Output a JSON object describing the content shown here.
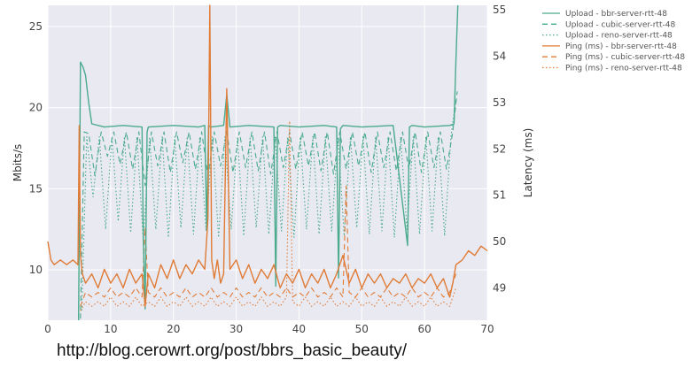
{
  "chart_data": {
    "type": "line",
    "title": "",
    "xlabel": "",
    "ylabel_left": "Mbits/s",
    "ylabel_right": "Latency (ms)",
    "xlim": [
      0,
      70
    ],
    "ylim_left": [
      6.9,
      26.3
    ],
    "ylim_right": [
      48.3,
      55.1
    ],
    "x_ticks": [
      "0",
      "10",
      "20",
      "30",
      "40",
      "50",
      "60",
      "70"
    ],
    "y_left_ticks": [
      "10",
      "15",
      "20",
      "25"
    ],
    "y_right_ticks": [
      "49",
      "50",
      "51",
      "52",
      "53",
      "54",
      "55"
    ],
    "grid": true,
    "legend_position": "right, outside plot",
    "colors": {
      "upload": "#4aaa8c",
      "ping": "#e07b36",
      "plot_bg": "#e9e9f2",
      "grid": "#ffffff"
    },
    "series": [
      {
        "name": "Upload - bbr-server-rtt-48",
        "axis": "left",
        "style": "solid",
        "color": "#4aaa8c",
        "x": [
          0,
          4.9,
          5.2,
          5.6,
          6.0,
          6.5,
          7,
          9,
          12,
          15,
          15.2,
          15.5,
          15.8,
          16,
          20,
          24,
          25,
          25.3,
          25.6,
          26,
          28,
          28.5,
          29,
          32,
          36,
          36.3,
          36.6,
          37,
          40,
          44,
          46,
          46.3,
          46.6,
          47,
          50,
          55,
          57.3,
          57.6,
          58,
          60,
          64,
          64.7,
          65.0,
          65.3
        ],
        "values": [
          null,
          6.9,
          22.8,
          22.5,
          22.0,
          20.3,
          19.0,
          18.8,
          18.9,
          18.8,
          12.0,
          7.6,
          18.5,
          18.8,
          18.9,
          18.8,
          18.9,
          12.5,
          18.9,
          18.8,
          18.9,
          20.8,
          18.8,
          18.9,
          18.8,
          9.0,
          18.8,
          18.9,
          18.8,
          18.9,
          18.8,
          9.5,
          18.7,
          18.9,
          18.8,
          18.9,
          11.5,
          18.8,
          18.9,
          18.8,
          18.9,
          19.0,
          23.0,
          26.3
        ]
      },
      {
        "name": "Upload - cubic-server-rtt-48",
        "axis": "left",
        "style": "dashed",
        "color": "#4aaa8c",
        "x": [
          5.2,
          5.8,
          6.5,
          7.5,
          8.5,
          9.5,
          10.5,
          11.5,
          12.5,
          13.5,
          14.5,
          15.5,
          16.5,
          17.5,
          18.5,
          19.5,
          20.5,
          21.5,
          22.5,
          23.5,
          24.5,
          25.5,
          26.5,
          27.5,
          28.5,
          29.5,
          30.5,
          31.5,
          32.5,
          33.5,
          34.5,
          35.5,
          36.5,
          37.5,
          38.5,
          39.5,
          40.5,
          41.5,
          42.5,
          43.5,
          44.5,
          45.5,
          46.5,
          47.5,
          48.5,
          49.5,
          50.5,
          51.5,
          52.5,
          53.5,
          54.5,
          55.5,
          56.5,
          57.5,
          58.5,
          59.5,
          60.5,
          61.5,
          62.5,
          63.5,
          64.5,
          65.2
        ],
        "values": [
          7.0,
          18.5,
          18.4,
          15.8,
          18.5,
          17.0,
          18.5,
          16.5,
          18.5,
          16.2,
          18.5,
          15.2,
          18.5,
          16.4,
          18.5,
          16.0,
          18.5,
          16.6,
          18.5,
          16.2,
          18.5,
          15.8,
          18.5,
          16.4,
          18.5,
          16.0,
          18.5,
          16.3,
          18.5,
          16.1,
          18.5,
          15.9,
          18.5,
          16.3,
          18.5,
          16.2,
          18.5,
          16.4,
          18.5,
          16.1,
          18.5,
          15.9,
          18.5,
          16.2,
          18.5,
          16.4,
          18.5,
          16.0,
          18.5,
          16.3,
          18.5,
          16.1,
          18.5,
          16.2,
          18.5,
          16.0,
          18.5,
          16.3,
          18.5,
          16.2,
          18.5,
          21.0
        ]
      },
      {
        "name": "Upload - reno-server-rtt-48",
        "axis": "left",
        "style": "dotted",
        "color": "#4aaa8c",
        "x": [
          5.4,
          6.2,
          7.2,
          8.2,
          9.2,
          10.2,
          11.2,
          12.2,
          13.2,
          14.2,
          15.2,
          16.2,
          17.2,
          18.2,
          19.2,
          20.2,
          21.2,
          22.2,
          23.2,
          24.2,
          25.2,
          26.2,
          27.2,
          28.2,
          29.2,
          30.2,
          31.2,
          32.2,
          33.2,
          34.2,
          35.2,
          36.2,
          37.2,
          38.2,
          39.2,
          40.2,
          41.2,
          42.2,
          43.2,
          44.2,
          45.2,
          46.2,
          47.2,
          48.2,
          49.2,
          50.2,
          51.2,
          52.2,
          53.2,
          54.2,
          55.2,
          56.2,
          57.2,
          58.2,
          59.2,
          60.2,
          61.2,
          62.2,
          63.2,
          64.2,
          65.0
        ],
        "values": [
          7.5,
          18.2,
          14.5,
          18.2,
          12.5,
          18.2,
          13.0,
          18.2,
          12.3,
          18.2,
          11.8,
          18.2,
          12.5,
          18.2,
          12.0,
          18.2,
          12.6,
          18.2,
          12.2,
          18.2,
          12.4,
          18.2,
          12.0,
          18.2,
          12.5,
          18.2,
          12.1,
          18.2,
          12.6,
          18.2,
          12.2,
          18.2,
          12.4,
          18.2,
          12.0,
          18.2,
          12.5,
          18.2,
          12.2,
          18.2,
          12.4,
          18.2,
          12.1,
          18.2,
          12.6,
          18.2,
          12.2,
          18.2,
          12.4,
          18.2,
          12.0,
          18.2,
          12.5,
          18.2,
          12.2,
          18.2,
          12.4,
          18.2,
          12.1,
          18.2,
          20.5
        ]
      },
      {
        "name": "Ping (ms) - bbr-server-rtt-48",
        "axis": "right",
        "style": "solid",
        "color": "#e07b36",
        "x": [
          0,
          0.5,
          1,
          2,
          3,
          4,
          4.8,
          5.0,
          5.2,
          5.5,
          6,
          7,
          8,
          9,
          10,
          11,
          12,
          13,
          14,
          15,
          15.5,
          16,
          17,
          18,
          19,
          20,
          21,
          22,
          23,
          24,
          25,
          25.5,
          25.8,
          26.1,
          26.5,
          27,
          27.5,
          28,
          28.5,
          29,
          30,
          31,
          32,
          33,
          34,
          35,
          36,
          37,
          38,
          39,
          40,
          41,
          42,
          43,
          44,
          45,
          46,
          47,
          48,
          49,
          50,
          51,
          52,
          53,
          54,
          55,
          56,
          57,
          58,
          59,
          60,
          61,
          62,
          63,
          64,
          64.5,
          65,
          66,
          67,
          68,
          69,
          70
        ],
        "values": [
          50.0,
          49.6,
          49.5,
          49.6,
          49.5,
          49.6,
          49.5,
          52.5,
          49.7,
          49.3,
          49.1,
          49.3,
          49.0,
          49.4,
          49.1,
          49.3,
          49.0,
          49.4,
          49.1,
          49.3,
          48.6,
          49.3,
          49.0,
          49.5,
          49.2,
          49.6,
          49.2,
          49.5,
          49.3,
          49.6,
          49.4,
          50.5,
          55.1,
          49.6,
          49.2,
          49.6,
          49.1,
          49.3,
          53.3,
          49.4,
          49.6,
          49.2,
          49.5,
          49.1,
          49.4,
          49.2,
          49.5,
          49.0,
          49.3,
          49.1,
          49.4,
          49.0,
          49.3,
          49.1,
          49.4,
          49.0,
          49.3,
          49.7,
          49.1,
          49.4,
          49.0,
          49.3,
          49.1,
          49.3,
          49.0,
          49.2,
          49.1,
          49.3,
          49.0,
          49.2,
          49.1,
          49.3,
          49.0,
          49.2,
          48.8,
          49.1,
          49.5,
          49.6,
          49.8,
          49.7,
          49.9,
          49.8
        ]
      },
      {
        "name": "Ping (ms) - cubic-server-rtt-48",
        "axis": "right",
        "style": "dashed",
        "color": "#e07b36",
        "x": [
          5.2,
          6,
          7,
          8,
          9,
          10,
          11,
          12,
          13,
          14,
          15,
          15.5,
          16,
          17,
          18,
          19,
          20,
          21,
          22,
          23,
          24,
          25,
          26,
          27,
          28,
          29,
          30,
          31,
          32,
          33,
          34,
          35,
          36,
          37,
          38,
          39,
          40,
          41,
          42,
          43,
          44,
          45,
          46,
          47,
          47.5,
          48,
          49,
          50,
          51,
          52,
          53,
          54,
          55,
          56,
          57,
          58,
          59,
          60,
          61,
          62,
          63,
          64,
          65
        ],
        "values": [
          48.6,
          48.9,
          48.8,
          48.9,
          48.8,
          49.0,
          48.8,
          48.9,
          48.8,
          49.0,
          48.8,
          50.3,
          48.9,
          48.8,
          49.0,
          48.8,
          48.9,
          48.8,
          49.0,
          48.8,
          48.9,
          48.8,
          49.0,
          48.8,
          48.9,
          48.8,
          49.0,
          48.8,
          48.9,
          48.8,
          49.0,
          48.8,
          48.9,
          48.8,
          49.0,
          48.8,
          48.9,
          48.8,
          49.0,
          48.8,
          48.9,
          48.8,
          49.0,
          48.8,
          51.2,
          48.9,
          48.8,
          49.0,
          48.8,
          48.9,
          48.8,
          49.0,
          48.8,
          48.9,
          48.8,
          49.0,
          48.8,
          48.9,
          48.8,
          49.0,
          48.8,
          48.9,
          49.3
        ]
      },
      {
        "name": "Ping (ms) - reno-server-rtt-48",
        "axis": "right",
        "style": "dotted",
        "color": "#e07b36",
        "x": [
          5.2,
          6,
          7,
          8,
          9,
          10,
          11,
          12,
          13,
          14,
          15,
          16,
          17,
          18,
          19,
          20,
          21,
          22,
          23,
          24,
          25,
          26,
          27,
          28,
          29,
          30,
          31,
          32,
          33,
          34,
          35,
          36,
          37,
          38,
          38.5,
          39,
          40,
          41,
          42,
          43,
          44,
          45,
          46,
          47,
          48,
          49,
          50,
          51,
          52,
          53,
          54,
          55,
          56,
          57,
          58,
          59,
          60,
          61,
          62,
          63,
          64,
          65
        ],
        "values": [
          48.5,
          48.7,
          48.6,
          48.7,
          48.6,
          48.8,
          48.6,
          48.7,
          48.6,
          48.8,
          48.6,
          48.7,
          48.6,
          48.8,
          48.6,
          48.7,
          48.6,
          48.8,
          48.6,
          48.7,
          48.6,
          48.8,
          48.6,
          48.7,
          48.6,
          48.8,
          48.6,
          48.7,
          48.6,
          48.8,
          48.6,
          48.7,
          48.6,
          48.8,
          52.6,
          48.7,
          48.6,
          48.8,
          48.6,
          48.7,
          48.6,
          48.8,
          48.6,
          48.7,
          48.6,
          48.8,
          48.6,
          48.7,
          48.6,
          48.8,
          48.6,
          48.7,
          48.6,
          48.8,
          48.6,
          48.7,
          48.6,
          48.8,
          48.6,
          48.7,
          48.6,
          49.0
        ]
      }
    ]
  },
  "source_url": "http://blog.cerowrt.org/post/bbrs_basic_beauty/"
}
